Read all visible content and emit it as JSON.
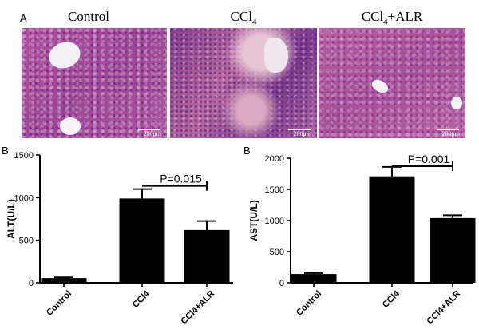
{
  "figure": {
    "panel_a_letter": "A",
    "panel_b_letter_left": "B",
    "panel_b_letter_right": "B"
  },
  "micrographs": [
    {
      "title": "Control",
      "title_sub": "",
      "title_suffix": "",
      "scale_label": "200μm",
      "colors": {
        "stain": "#a94c9c",
        "light": "#c77fb6",
        "dark": "#6b2a78"
      }
    },
    {
      "title": "CCl",
      "title_sub": "4",
      "title_suffix": "",
      "scale_label": "200μm",
      "colors": {
        "stain": "#b6609f",
        "light": "#d79ab8",
        "dark": "#5a2a7e"
      }
    },
    {
      "title": "CCl",
      "title_sub": "4",
      "title_suffix": "+ALR",
      "scale_label": "200μm",
      "colors": {
        "stain": "#b35a9f",
        "light": "#cf8cb9",
        "dark": "#6a2c7a"
      }
    }
  ],
  "chart_data": [
    {
      "type": "bar",
      "title": "",
      "xlabel": "",
      "ylabel": "ALT(U/L)",
      "categories": [
        "Control",
        "CCl4",
        "CCl4+ALR"
      ],
      "values": [
        55,
        990,
        620
      ],
      "errors": [
        8,
        110,
        105
      ],
      "ylim": [
        0,
        1500
      ],
      "yticks": [
        0,
        500,
        1000,
        1500
      ],
      "annotation": {
        "text": "P=0.015",
        "from": 1,
        "to": 2
      },
      "grid": false,
      "bar_color": "#000000"
    },
    {
      "type": "bar",
      "title": "",
      "xlabel": "",
      "ylabel": "AST(U/L)",
      "categories": [
        "Control",
        "CCl4",
        "CCl4+ALR"
      ],
      "values": [
        140,
        1710,
        1040
      ],
      "errors": [
        15,
        150,
        45
      ],
      "ylim": [
        0,
        2000
      ],
      "yticks": [
        0,
        500,
        1000,
        1500,
        2000
      ],
      "annotation": {
        "text": "P=0.001",
        "from": 1,
        "to": 2
      },
      "grid": false,
      "bar_color": "#000000"
    }
  ]
}
